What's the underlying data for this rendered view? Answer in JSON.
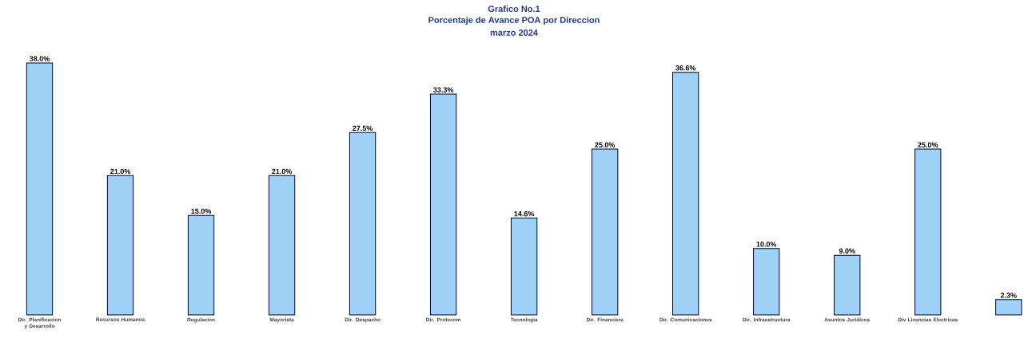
{
  "chart_data": {
    "type": "bar",
    "title": "Grafico No.1",
    "subtitle": "Porcentaje de Avance POA por Direccion",
    "annotations": [
      "marzo 2024"
    ],
    "categories": [
      "Dir. Planificacion y Desarrollo",
      "Recursos Humanos",
      "Regulacion",
      "Mayorista",
      "Dir. Despacho",
      "Dir. Protecom",
      "Tecnologia",
      "Dir. Financiera",
      "Dir. Comunicaciones",
      "Dir. Infraestructura",
      "Asuntos Juridicos",
      "Div Licencias Electricas",
      null
    ],
    "values": [
      38.0,
      21.0,
      15.0,
      21.0,
      27.5,
      33.3,
      14.6,
      25.0,
      36.6,
      10.0,
      9.0,
      25.0,
      2.3
    ],
    "value_labels": [
      "38.0%",
      "21.0%",
      "15.0%",
      "21.0%",
      "27.5%",
      "33.3%",
      "14.6%",
      "25.0%",
      "36.6%",
      "10.0%",
      "9.0%",
      "25.0%",
      "2.3%"
    ],
    "color": "#9fd0f5"
  }
}
